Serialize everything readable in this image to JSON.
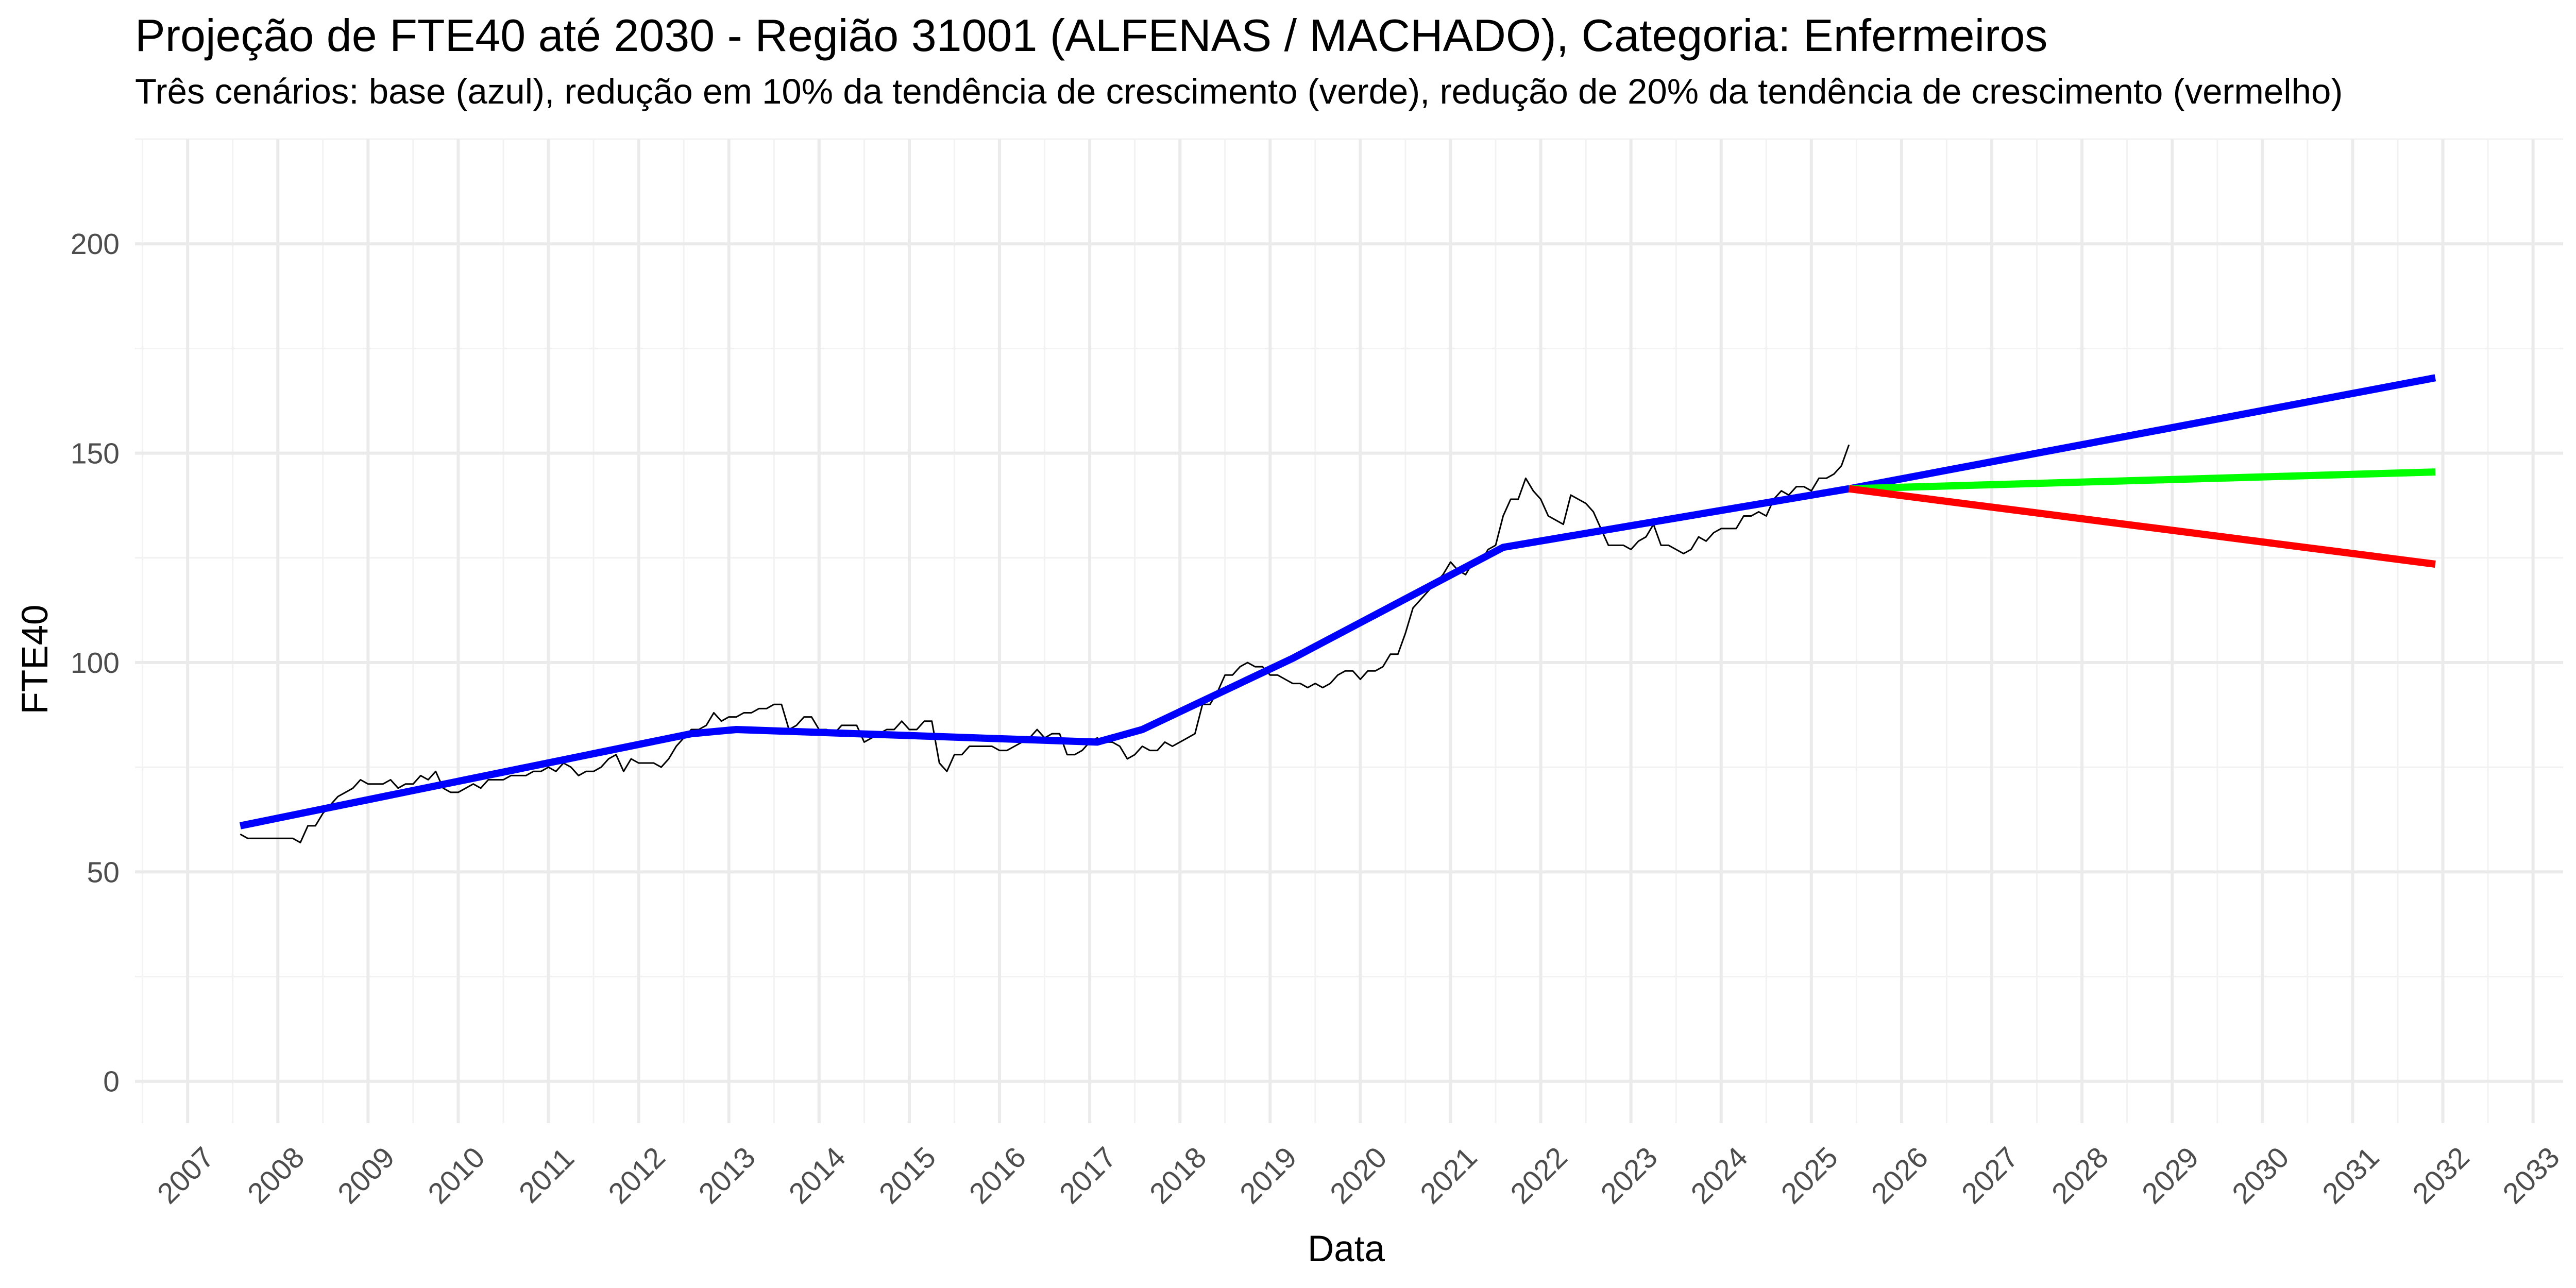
{
  "chart_data": {
    "type": "line",
    "title": "Projeção de FTE40 até 2030 - Região 31001 (ALFENAS / MACHADO), Categoria: Enfermeiros",
    "subtitle": "Três cenários: base (azul), redução em 10% da tendência de crescimento (verde), redução de 20% da tendência de crescimento (vermelho)",
    "xlabel": "Data",
    "ylabel": "FTE40",
    "xlim": [
      "2006-06-01",
      "2033-05-01"
    ],
    "ylim": [
      -10,
      225
    ],
    "x_ticks": [
      "2007",
      "2008",
      "2009",
      "2010",
      "2011",
      "2012",
      "2013",
      "2014",
      "2015",
      "2016",
      "2017",
      "2018",
      "2019",
      "2020",
      "2021",
      "2022",
      "2023",
      "2024",
      "2025",
      "2026",
      "2027",
      "2028",
      "2029",
      "2030",
      "2031",
      "2032",
      "2033"
    ],
    "y_ticks": [
      0,
      50,
      100,
      150,
      200
    ],
    "grid": true,
    "legend": "none",
    "series": [
      {
        "key": "observed",
        "color": "#000000",
        "line_width": 3,
        "points": [
          [
            "2007-08-01",
            59
          ],
          [
            "2007-09-01",
            58
          ],
          [
            "2007-10-01",
            58
          ],
          [
            "2007-11-01",
            58
          ],
          [
            "2007-12-01",
            58
          ],
          [
            "2008-01-01",
            58
          ],
          [
            "2008-02-01",
            58
          ],
          [
            "2008-03-01",
            58
          ],
          [
            "2008-04-01",
            57
          ],
          [
            "2008-05-01",
            61
          ],
          [
            "2008-06-01",
            61
          ],
          [
            "2008-07-01",
            64
          ],
          [
            "2008-08-01",
            66
          ],
          [
            "2008-09-01",
            68
          ],
          [
            "2008-10-01",
            69
          ],
          [
            "2008-11-01",
            70
          ],
          [
            "2008-12-01",
            72
          ],
          [
            "2009-01-01",
            71
          ],
          [
            "2009-02-01",
            71
          ],
          [
            "2009-03-01",
            71
          ],
          [
            "2009-04-01",
            72
          ],
          [
            "2009-05-01",
            70
          ],
          [
            "2009-06-01",
            71
          ],
          [
            "2009-07-01",
            71
          ],
          [
            "2009-08-01",
            73
          ],
          [
            "2009-09-01",
            72
          ],
          [
            "2009-10-01",
            74
          ],
          [
            "2009-11-01",
            70
          ],
          [
            "2009-12-01",
            69
          ],
          [
            "2010-01-01",
            69
          ],
          [
            "2010-02-01",
            70
          ],
          [
            "2010-03-01",
            71
          ],
          [
            "2010-04-01",
            70
          ],
          [
            "2010-05-01",
            72
          ],
          [
            "2010-06-01",
            72
          ],
          [
            "2010-07-01",
            72
          ],
          [
            "2010-08-01",
            73
          ],
          [
            "2010-09-01",
            73
          ],
          [
            "2010-10-01",
            73
          ],
          [
            "2010-11-01",
            74
          ],
          [
            "2010-12-01",
            74
          ],
          [
            "2011-01-01",
            75
          ],
          [
            "2011-02-01",
            74
          ],
          [
            "2011-03-01",
            76
          ],
          [
            "2011-04-01",
            75
          ],
          [
            "2011-05-01",
            73
          ],
          [
            "2011-06-01",
            74
          ],
          [
            "2011-07-01",
            74
          ],
          [
            "2011-08-01",
            75
          ],
          [
            "2011-09-01",
            77
          ],
          [
            "2011-10-01",
            78
          ],
          [
            "2011-11-01",
            74
          ],
          [
            "2011-12-01",
            77
          ],
          [
            "2012-01-01",
            76
          ],
          [
            "2012-02-01",
            76
          ],
          [
            "2012-03-01",
            76
          ],
          [
            "2012-04-01",
            75
          ],
          [
            "2012-05-01",
            77
          ],
          [
            "2012-06-01",
            80
          ],
          [
            "2012-07-01",
            82
          ],
          [
            "2012-08-01",
            84
          ],
          [
            "2012-09-01",
            84
          ],
          [
            "2012-10-01",
            85
          ],
          [
            "2012-11-01",
            88
          ],
          [
            "2012-12-01",
            86
          ],
          [
            "2013-01-01",
            87
          ],
          [
            "2013-02-01",
            87
          ],
          [
            "2013-03-01",
            88
          ],
          [
            "2013-04-01",
            88
          ],
          [
            "2013-05-01",
            89
          ],
          [
            "2013-06-01",
            89
          ],
          [
            "2013-07-01",
            90
          ],
          [
            "2013-08-01",
            90
          ],
          [
            "2013-09-01",
            84
          ],
          [
            "2013-10-01",
            85
          ],
          [
            "2013-11-01",
            87
          ],
          [
            "2013-12-01",
            87
          ],
          [
            "2014-01-01",
            84
          ],
          [
            "2014-02-01",
            84
          ],
          [
            "2014-03-01",
            83
          ],
          [
            "2014-04-01",
            85
          ],
          [
            "2014-05-01",
            85
          ],
          [
            "2014-06-01",
            85
          ],
          [
            "2014-07-01",
            81
          ],
          [
            "2014-08-01",
            82
          ],
          [
            "2014-09-01",
            83
          ],
          [
            "2014-10-01",
            84
          ],
          [
            "2014-11-01",
            84
          ],
          [
            "2014-12-01",
            86
          ],
          [
            "2015-01-01",
            84
          ],
          [
            "2015-02-01",
            84
          ],
          [
            "2015-03-01",
            86
          ],
          [
            "2015-04-01",
            86
          ],
          [
            "2015-05-01",
            76
          ],
          [
            "2015-06-01",
            74
          ],
          [
            "2015-07-01",
            78
          ],
          [
            "2015-08-01",
            78
          ],
          [
            "2015-09-01",
            80
          ],
          [
            "2015-10-01",
            80
          ],
          [
            "2015-11-01",
            80
          ],
          [
            "2015-12-01",
            80
          ],
          [
            "2016-01-01",
            79
          ],
          [
            "2016-02-01",
            79
          ],
          [
            "2016-03-01",
            80
          ],
          [
            "2016-04-01",
            81
          ],
          [
            "2016-05-01",
            82
          ],
          [
            "2016-06-01",
            84
          ],
          [
            "2016-07-01",
            82
          ],
          [
            "2016-08-01",
            83
          ],
          [
            "2016-09-01",
            83
          ],
          [
            "2016-10-01",
            78
          ],
          [
            "2016-11-01",
            78
          ],
          [
            "2016-12-01",
            79
          ],
          [
            "2017-01-01",
            81
          ],
          [
            "2017-02-01",
            82
          ],
          [
            "2017-03-01",
            81
          ],
          [
            "2017-04-01",
            81
          ],
          [
            "2017-05-01",
            80
          ],
          [
            "2017-06-01",
            77
          ],
          [
            "2017-07-01",
            78
          ],
          [
            "2017-08-01",
            80
          ],
          [
            "2017-09-01",
            79
          ],
          [
            "2017-10-01",
            79
          ],
          [
            "2017-11-01",
            81
          ],
          [
            "2017-12-01",
            80
          ],
          [
            "2018-01-01",
            81
          ],
          [
            "2018-02-01",
            82
          ],
          [
            "2018-03-01",
            83
          ],
          [
            "2018-04-01",
            90
          ],
          [
            "2018-05-01",
            90
          ],
          [
            "2018-06-01",
            93
          ],
          [
            "2018-07-01",
            97
          ],
          [
            "2018-08-01",
            97
          ],
          [
            "2018-09-01",
            99
          ],
          [
            "2018-10-01",
            100
          ],
          [
            "2018-11-01",
            99
          ],
          [
            "2018-12-01",
            99
          ],
          [
            "2019-01-01",
            97
          ],
          [
            "2019-02-01",
            97
          ],
          [
            "2019-03-01",
            96
          ],
          [
            "2019-04-01",
            95
          ],
          [
            "2019-05-01",
            95
          ],
          [
            "2019-06-01",
            94
          ],
          [
            "2019-07-01",
            95
          ],
          [
            "2019-08-01",
            94
          ],
          [
            "2019-09-01",
            95
          ],
          [
            "2019-10-01",
            97
          ],
          [
            "2019-11-01",
            98
          ],
          [
            "2019-12-01",
            98
          ],
          [
            "2020-01-01",
            96
          ],
          [
            "2020-02-01",
            98
          ],
          [
            "2020-03-01",
            98
          ],
          [
            "2020-04-01",
            99
          ],
          [
            "2020-05-01",
            102
          ],
          [
            "2020-06-01",
            102
          ],
          [
            "2020-07-01",
            107
          ],
          [
            "2020-08-01",
            113
          ],
          [
            "2020-09-01",
            115
          ],
          [
            "2020-10-01",
            117
          ],
          [
            "2020-11-01",
            119
          ],
          [
            "2020-12-01",
            121
          ],
          [
            "2021-01-01",
            124
          ],
          [
            "2021-02-01",
            122
          ],
          [
            "2021-03-01",
            121
          ],
          [
            "2021-04-01",
            124
          ],
          [
            "2021-05-01",
            124
          ],
          [
            "2021-06-01",
            127
          ],
          [
            "2021-07-01",
            128
          ],
          [
            "2021-08-01",
            135
          ],
          [
            "2021-09-01",
            139
          ],
          [
            "2021-10-01",
            139
          ],
          [
            "2021-11-01",
            144
          ],
          [
            "2021-12-01",
            141
          ],
          [
            "2022-01-01",
            139
          ],
          [
            "2022-02-01",
            135
          ],
          [
            "2022-03-01",
            134
          ],
          [
            "2022-04-01",
            133
          ],
          [
            "2022-05-01",
            140
          ],
          [
            "2022-06-01",
            139
          ],
          [
            "2022-07-01",
            138
          ],
          [
            "2022-08-01",
            136
          ],
          [
            "2022-09-01",
            132
          ],
          [
            "2022-10-01",
            128
          ],
          [
            "2022-11-01",
            128
          ],
          [
            "2022-12-01",
            128
          ],
          [
            "2023-01-01",
            127
          ],
          [
            "2023-02-01",
            129
          ],
          [
            "2023-03-01",
            130
          ],
          [
            "2023-04-01",
            133
          ],
          [
            "2023-05-01",
            128
          ],
          [
            "2023-06-01",
            128
          ],
          [
            "2023-07-01",
            127
          ],
          [
            "2023-08-01",
            126
          ],
          [
            "2023-09-01",
            127
          ],
          [
            "2023-10-01",
            130
          ],
          [
            "2023-11-01",
            129
          ],
          [
            "2023-12-01",
            131
          ],
          [
            "2024-01-01",
            132
          ],
          [
            "2024-02-01",
            132
          ],
          [
            "2024-03-01",
            132
          ],
          [
            "2024-04-01",
            135
          ],
          [
            "2024-05-01",
            135
          ],
          [
            "2024-06-01",
            136
          ],
          [
            "2024-07-01",
            135
          ],
          [
            "2024-08-01",
            139
          ],
          [
            "2024-09-01",
            141
          ],
          [
            "2024-10-01",
            140
          ],
          [
            "2024-11-01",
            142
          ],
          [
            "2024-12-01",
            142
          ],
          [
            "2025-01-01",
            141
          ],
          [
            "2025-02-01",
            144
          ],
          [
            "2025-03-01",
            144
          ],
          [
            "2025-04-01",
            145
          ],
          [
            "2025-05-01",
            147
          ],
          [
            "2025-06-01",
            152
          ]
        ]
      },
      {
        "key": "trend",
        "color": "#0000ff",
        "line_width": 14,
        "points": [
          [
            "2007-08-01",
            61
          ],
          [
            "2012-08-01",
            83
          ],
          [
            "2013-02-01",
            84
          ],
          [
            "2017-02-01",
            81
          ],
          [
            "2017-08-01",
            84
          ],
          [
            "2019-04-01",
            101
          ],
          [
            "2021-08-01",
            127.5
          ],
          [
            "2025-06-01",
            141.5
          ]
        ]
      },
      {
        "key": "base",
        "color": "#0000ff",
        "line_width": 14,
        "points": [
          [
            "2025-06-01",
            141.5
          ],
          [
            "2031-12-01",
            168
          ]
        ]
      },
      {
        "key": "reduction-10",
        "color": "#00ff00",
        "line_width": 14,
        "points": [
          [
            "2025-06-01",
            141.5
          ],
          [
            "2031-12-01",
            145.5
          ]
        ]
      },
      {
        "key": "reduction-20",
        "color": "#ff0000",
        "line_width": 14,
        "points": [
          [
            "2025-06-01",
            141.5
          ],
          [
            "2031-12-01",
            123.5
          ]
        ]
      }
    ]
  }
}
